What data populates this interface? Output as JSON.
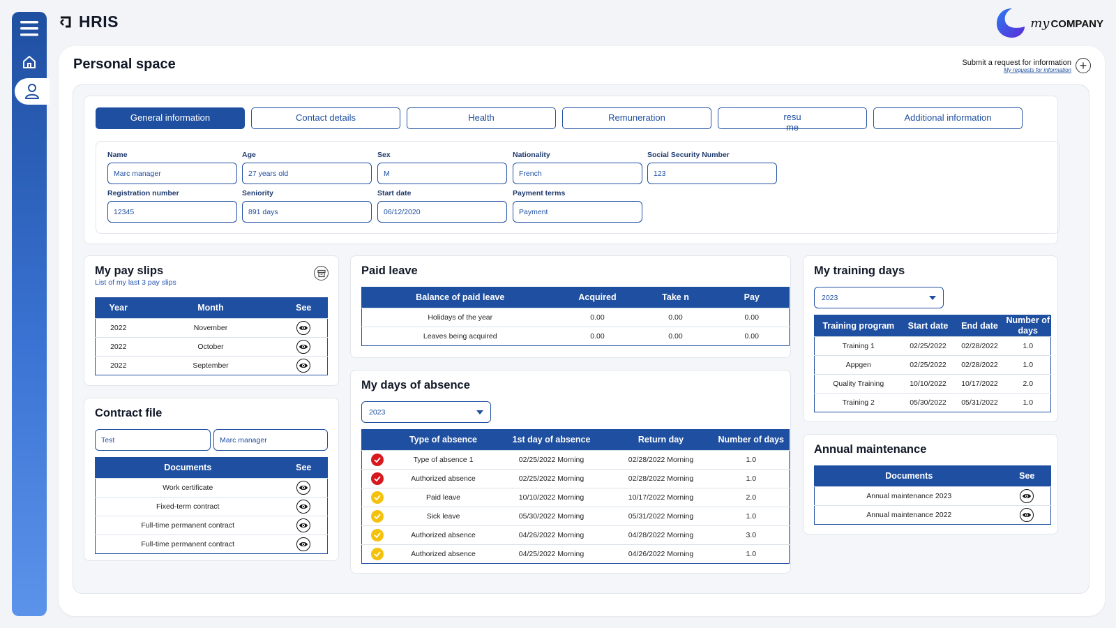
{
  "app": {
    "title": "HRIS",
    "logo_word_italic": "my",
    "logo_word": "COMPANY"
  },
  "header": {
    "page_title": "Personal space",
    "request_label": "Submit a request for information",
    "request_link": "My requests for information"
  },
  "tabs": [
    {
      "label": "General information",
      "active": true
    },
    {
      "label": "Contact details"
    },
    {
      "label": "Health"
    },
    {
      "label": "Remuneration"
    },
    {
      "label": "resume"
    },
    {
      "label": "Additional information"
    }
  ],
  "general": {
    "name": {
      "label": "Name",
      "value": "Marc manager"
    },
    "age": {
      "label": "Age",
      "value": "27 years old"
    },
    "sex": {
      "label": "Sex",
      "value": "M"
    },
    "nationality": {
      "label": "Nationality",
      "value": "French"
    },
    "ssn": {
      "label": "Social Security Number",
      "value": "123"
    },
    "registration": {
      "label": "Registration number",
      "value": "12345"
    },
    "seniority": {
      "label": "Seniority",
      "value": "891 days"
    },
    "start_date": {
      "label": "Start date",
      "value": "06/12/2020"
    },
    "payment_terms": {
      "label": "Payment terms",
      "value": "Payment"
    }
  },
  "pay_slips": {
    "title": "My pay slips",
    "subtitle": "List of my last 3 pay slips",
    "headers": [
      "Year",
      "Month",
      "See"
    ],
    "rows": [
      {
        "year": "2022",
        "month": "November"
      },
      {
        "year": "2022",
        "month": "October"
      },
      {
        "year": "2022",
        "month": "September"
      }
    ]
  },
  "contract": {
    "title": "Contract file",
    "input1": "Test",
    "input2": "Marc manager",
    "headers": [
      "Documents",
      "See"
    ],
    "rows": [
      "Work certificate",
      "Fixed-term contract",
      "Full-time permanent contract",
      "Full-time permanent contract"
    ]
  },
  "paid_leave": {
    "title": "Paid leave",
    "headers": [
      "Balance of paid leave",
      "Acquired",
      "Take n",
      "Pay"
    ],
    "rows": [
      [
        "Holidays of the year",
        "0.00",
        "0.00",
        "0.00"
      ],
      [
        "Leaves being acquired",
        "0.00",
        "0.00",
        "0.00"
      ]
    ]
  },
  "absence": {
    "title": "My days of absence",
    "year": "2023",
    "headers": [
      "",
      "Type of absence",
      "1st day of absence",
      "Return day",
      "Number of days"
    ],
    "rows": [
      {
        "status": "red",
        "type": "Type of absence 1",
        "first": "02/25/2022 Morning",
        "ret": "02/28/2022 Morning",
        "days": "1.0"
      },
      {
        "status": "red",
        "type": "Authorized absence",
        "first": "02/25/2022 Morning",
        "ret": "02/28/2022 Morning",
        "days": "1.0"
      },
      {
        "status": "yellow",
        "type": "Paid leave",
        "first": "10/10/2022 Morning",
        "ret": "10/17/2022 Morning",
        "days": "2.0"
      },
      {
        "status": "yellow",
        "type": "Sick leave",
        "first": "05/30/2022 Morning",
        "ret": "05/31/2022 Morning",
        "days": "1.0"
      },
      {
        "status": "yellow",
        "type": "Authorized absence",
        "first": "04/26/2022 Morning",
        "ret": "04/28/2022 Morning",
        "days": "3.0"
      },
      {
        "status": "yellow",
        "type": "Authorized absence",
        "first": "04/25/2022 Morning",
        "ret": "04/26/2022 Morning",
        "days": "1.0"
      }
    ]
  },
  "training": {
    "title": "My training days",
    "year": "2023",
    "headers": [
      "Training program",
      "Start date",
      "End date",
      "Number of days"
    ],
    "rows": [
      [
        "Training 1",
        "02/25/2022",
        "02/28/2022",
        "1.0"
      ],
      [
        "Appgen",
        "02/25/2022",
        "02/28/2022",
        "1.0"
      ],
      [
        "Quality Training",
        "10/10/2022",
        "10/17/2022",
        "2.0"
      ],
      [
        "Training 2",
        "05/30/2022",
        "05/31/2022",
        "1.0"
      ]
    ]
  },
  "maintenance": {
    "title": "Annual maintenance",
    "headers": [
      "Documents",
      "See"
    ],
    "rows": [
      "Annual maintenance 2023",
      "Annual maintenance 2022"
    ]
  },
  "colors": {
    "primary": "#1f4fa0",
    "status_red": "#d7191f",
    "status_yellow": "#f4c20d"
  }
}
